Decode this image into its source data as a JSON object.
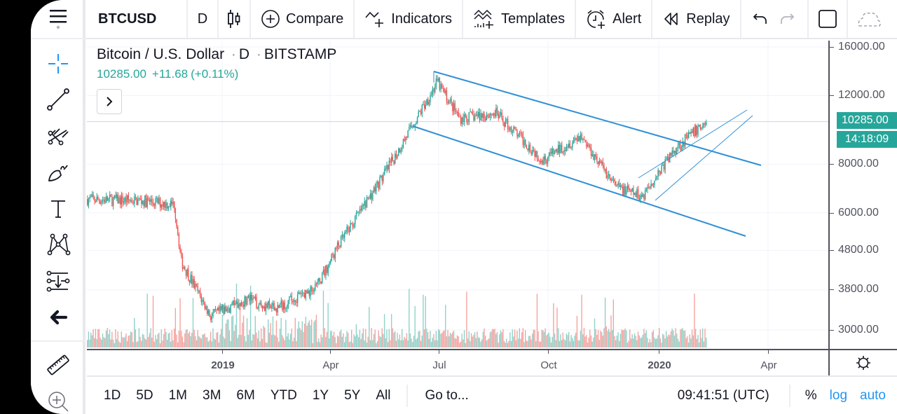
{
  "toolbar": {
    "symbol": "BTCUSD",
    "interval": "D",
    "compare_label": "Compare",
    "indicators_label": "Indicators",
    "templates_label": "Templates",
    "alert_label": "Alert",
    "replay_label": "Replay"
  },
  "left_tools": [
    {
      "name": "crosshair-tool",
      "active": true
    },
    {
      "name": "trend-line-tool"
    },
    {
      "name": "pitchfork-tool"
    },
    {
      "name": "brush-tool"
    },
    {
      "name": "text-tool"
    },
    {
      "name": "pattern-tool"
    },
    {
      "name": "prediction-measure-tool"
    },
    {
      "name": "back-arrow-tool"
    },
    {
      "name": "ruler-tool"
    },
    {
      "name": "zoom-in-tool"
    }
  ],
  "legend": {
    "title": "Bitcoin / U.S. Dollar",
    "interval": "D",
    "exchange": "BITSTAMP",
    "separator": "·",
    "last": "10285.00",
    "change": "+11.68",
    "change_pct": "(+0.11%)"
  },
  "price_axis": {
    "labels": [
      "16000.00",
      "12000.00",
      "8000.00",
      "6000.00",
      "4800.00",
      "3800.00",
      "3000.00"
    ],
    "current_price": "10285.00",
    "countdown": "14:18:09"
  },
  "time_axis": {
    "labels": [
      {
        "text": "2019",
        "bold": true
      },
      {
        "text": "Apr",
        "bold": false
      },
      {
        "text": "Jul",
        "bold": false
      },
      {
        "text": "Oct",
        "bold": false
      },
      {
        "text": "2020",
        "bold": true
      },
      {
        "text": "Apr",
        "bold": false
      }
    ]
  },
  "bottom_bar": {
    "ranges": [
      "1D",
      "5D",
      "1M",
      "3M",
      "6M",
      "YTD",
      "1Y",
      "5Y",
      "All"
    ],
    "goto_label": "Go to...",
    "clock": "09:41:51 (UTC)",
    "percent_label": "%",
    "log_label": "log",
    "auto_label": "auto"
  },
  "colors": {
    "up": "#26a69a",
    "down": "#ef5350",
    "up_volume": "#8fd1c8",
    "down_volume": "#f5a29f",
    "trendline": "#2f8fd6",
    "accent_blue": "#2196f3",
    "price_badge": "#26a69a"
  },
  "chart_data": {
    "type": "candlestick",
    "title": "Bitcoin / U.S. Dollar · D · BITSTAMP",
    "scale": "log",
    "y_ticks": [
      16000,
      12000,
      8000,
      6000,
      4800,
      3800,
      3000
    ],
    "x_ticks": [
      "2019",
      "Apr",
      "Jul",
      "Oct",
      "2020",
      "Apr"
    ],
    "last_price": 10285.0,
    "change": 11.68,
    "change_pct": 0.11,
    "approx_price_path": [
      {
        "date": "2018-09",
        "close": 6500
      },
      {
        "date": "2018-10",
        "close": 6450
      },
      {
        "date": "2018-11-14",
        "close": 6300
      },
      {
        "date": "2018-11-20",
        "close": 4500
      },
      {
        "date": "2018-12-15",
        "close": 3250
      },
      {
        "date": "2019-01",
        "close": 3600
      },
      {
        "date": "2019-02-07",
        "close": 3400
      },
      {
        "date": "2019-03",
        "close": 3850
      },
      {
        "date": "2019-04-02",
        "close": 4900
      },
      {
        "date": "2019-05",
        "close": 7800
      },
      {
        "date": "2019-06-26",
        "close": 13000
      },
      {
        "date": "2019-07",
        "close": 10500
      },
      {
        "date": "2019-08",
        "close": 10800
      },
      {
        "date": "2019-09-24",
        "close": 8200
      },
      {
        "date": "2019-10-26",
        "close": 9500
      },
      {
        "date": "2019-11-25",
        "close": 7000
      },
      {
        "date": "2019-12-17",
        "close": 6600
      },
      {
        "date": "2020-01",
        "close": 8800
      },
      {
        "date": "2020-02-10",
        "close": 10285
      }
    ],
    "drawings": [
      {
        "type": "parallel-channel",
        "direction": "descending"
      },
      {
        "type": "parallel-channel",
        "direction": "ascending"
      }
    ]
  }
}
